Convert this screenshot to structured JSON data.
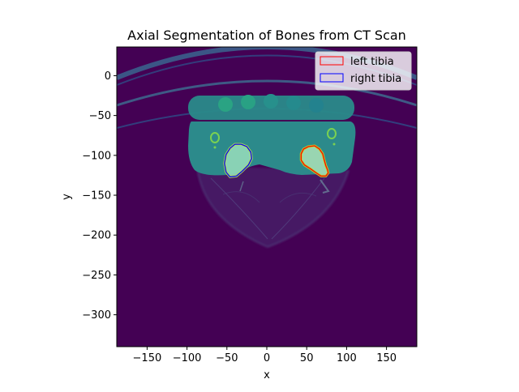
{
  "chart_data": {
    "type": "image-with-contours",
    "title": "Axial Segmentation of Bones from CT Scan",
    "xlabel": "x",
    "ylabel": "y",
    "xlim": [
      -188,
      188
    ],
    "ylim": [
      -340,
      36
    ],
    "xticks": [
      -150,
      -100,
      -50,
      0,
      50,
      100,
      150
    ],
    "yticks": [
      0,
      -50,
      -100,
      -150,
      -200,
      -250,
      -300
    ],
    "grid": false,
    "legend_position": "top-right",
    "colormap": "viridis",
    "series": [
      {
        "name": "left tibia",
        "color": "#ff0000",
        "points": [
          [
            52,
            -89
          ],
          [
            60,
            -88
          ],
          [
            66,
            -92
          ],
          [
            70,
            -98
          ],
          [
            72,
            -106
          ],
          [
            74,
            -113
          ],
          [
            76,
            -118
          ],
          [
            77,
            -122
          ],
          [
            74,
            -126
          ],
          [
            68,
            -126
          ],
          [
            62,
            -122
          ],
          [
            55,
            -117
          ],
          [
            47,
            -112
          ],
          [
            43,
            -106
          ],
          [
            43,
            -98
          ],
          [
            46,
            -92
          ]
        ]
      },
      {
        "name": "right tibia",
        "color": "#0000ff",
        "points": [
          [
            -40,
            -86
          ],
          [
            -32,
            -86
          ],
          [
            -25,
            -89
          ],
          [
            -20,
            -96
          ],
          [
            -19,
            -104
          ],
          [
            -23,
            -112
          ],
          [
            -31,
            -120
          ],
          [
            -38,
            -126
          ],
          [
            -46,
            -127
          ],
          [
            -51,
            -121
          ],
          [
            -53,
            -110
          ],
          [
            -51,
            -99
          ],
          [
            -46,
            -91
          ]
        ]
      }
    ]
  }
}
